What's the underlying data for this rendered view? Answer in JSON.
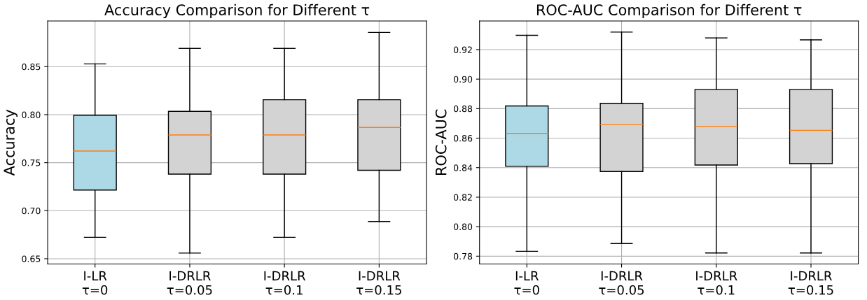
{
  "chart_data": [
    {
      "type": "box",
      "title": "Accuracy Comparison for Different τ",
      "ylabel": "Accuracy",
      "categories": [
        "I-LR\nτ=0",
        "I-DRLR\nτ=0.05",
        "I-DRLR\nτ=0.1",
        "I-DRLR\nτ=0.15"
      ],
      "colors": [
        "#add8e6",
        "#d3d3d3",
        "#d3d3d3",
        "#d3d3d3"
      ],
      "boxes": [
        {
          "low": 0.6723,
          "q1": 0.7215,
          "median": 0.7621,
          "q3": 0.7994,
          "high": 0.8528
        },
        {
          "low": 0.6559,
          "q1": 0.7381,
          "median": 0.7788,
          "q3": 0.8034,
          "high": 0.8689
        },
        {
          "low": 0.6723,
          "q1": 0.7381,
          "median": 0.7788,
          "q3": 0.8155,
          "high": 0.8689
        },
        {
          "low": 0.6887,
          "q1": 0.7421,
          "median": 0.7867,
          "q3": 0.8155,
          "high": 0.8856
        }
      ],
      "ylim": [
        0.6445,
        0.8975
      ],
      "yticks": [
        0.65,
        {
          "value": 0.7,
          "label": "0.70"
        },
        0.75,
        {
          "value": 0.8,
          "label": "0.80"
        },
        0.85
      ],
      "grid": true
    },
    {
      "type": "box",
      "title": "ROC-AUC Comparison for Different τ",
      "ylabel": "ROC-AUC",
      "categories": [
        "I-LR\nτ=0",
        "I-DRLR\nτ=0.05",
        "I-DRLR\nτ=0.1",
        "I-DRLR\nτ=0.15"
      ],
      "colors": [
        "#add8e6",
        "#d3d3d3",
        "#d3d3d3",
        "#d3d3d3"
      ],
      "boxes": [
        {
          "low": 0.7833,
          "q1": 0.8409,
          "median": 0.8632,
          "q3": 0.8818,
          "high": 0.9297
        },
        {
          "low": 0.7886,
          "q1": 0.8374,
          "median": 0.8691,
          "q3": 0.8836,
          "high": 0.9319
        },
        {
          "low": 0.7822,
          "q1": 0.8418,
          "median": 0.868,
          "q3": 0.893,
          "high": 0.9279
        },
        {
          "low": 0.7822,
          "q1": 0.8427,
          "median": 0.8653,
          "q3": 0.893,
          "high": 0.9266
        }
      ],
      "ylim": [
        0.7747,
        0.9394
      ],
      "yticks": [
        0.78,
        {
          "value": 0.8,
          "label": "0.80"
        },
        0.82,
        0.84,
        0.86,
        0.88,
        {
          "value": 0.9,
          "label": "0.90"
        },
        0.92
      ],
      "grid": true
    }
  ]
}
